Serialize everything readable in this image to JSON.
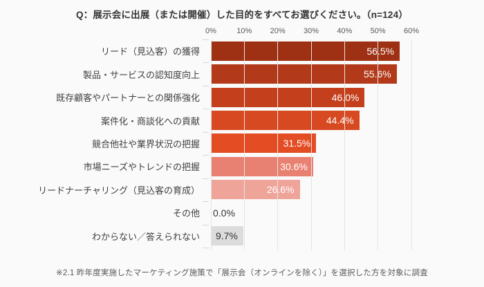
{
  "title": "Q：展示会に出展（または開催）した目的をすべてお選びください。（n=124）",
  "footnote": "※2.1 昨年度実施したマーケティング施策で「展示会（オンラインを除く）」を選択した方を対象に調査",
  "colors": {
    "background": "#fafafa",
    "grid": "#e4e4e4",
    "title_text": "#333333",
    "category_text": "#404040",
    "axis_text": "#595959"
  },
  "chart_data": {
    "type": "bar",
    "orientation": "horizontal",
    "title": "Q：展示会に出展（または開催）した目的をすべてお選びください。（n=124）",
    "xlabel": "",
    "ylabel": "",
    "xlim": [
      0,
      60
    ],
    "grid": true,
    "legend": false,
    "x_ticks": [
      "0%",
      "10%",
      "20%",
      "30%",
      "40%",
      "50%",
      "60%"
    ],
    "categories": [
      "リード（見込客）の獲得",
      "製品・サービスの認知度向上",
      "既存顧客やパートナーとの関係強化",
      "案件化・商談化への貢献",
      "競合他社や業界状況の把握",
      "市場ニーズやトレンドの把握",
      "リードナーチャリング（見込客の育成）",
      "その他",
      "わからない／答えられない"
    ],
    "values": [
      56.5,
      55.6,
      46.0,
      44.4,
      31.5,
      30.6,
      26.6,
      0.0,
      9.7
    ],
    "value_labels": [
      "56.5%",
      "55.6%",
      "46.0%",
      "44.4%",
      "31.5%",
      "30.6%",
      "26.6%",
      "0.0%",
      "9.7%"
    ],
    "bar_colors": [
      "#9e3014",
      "#b23a1a",
      "#c4401d",
      "#d74a21",
      "#e44d24",
      "#e98173",
      "#efa49a",
      null,
      "#dcdcdc"
    ],
    "value_text_colors": [
      "#ffffff",
      "#ffffff",
      "#ffffff",
      "#ffffff",
      "#ffffff",
      "#ffffff",
      "#ffffff",
      "#333333",
      "#333333"
    ],
    "label_inside": [
      true,
      true,
      true,
      true,
      true,
      true,
      true,
      false,
      true
    ]
  }
}
